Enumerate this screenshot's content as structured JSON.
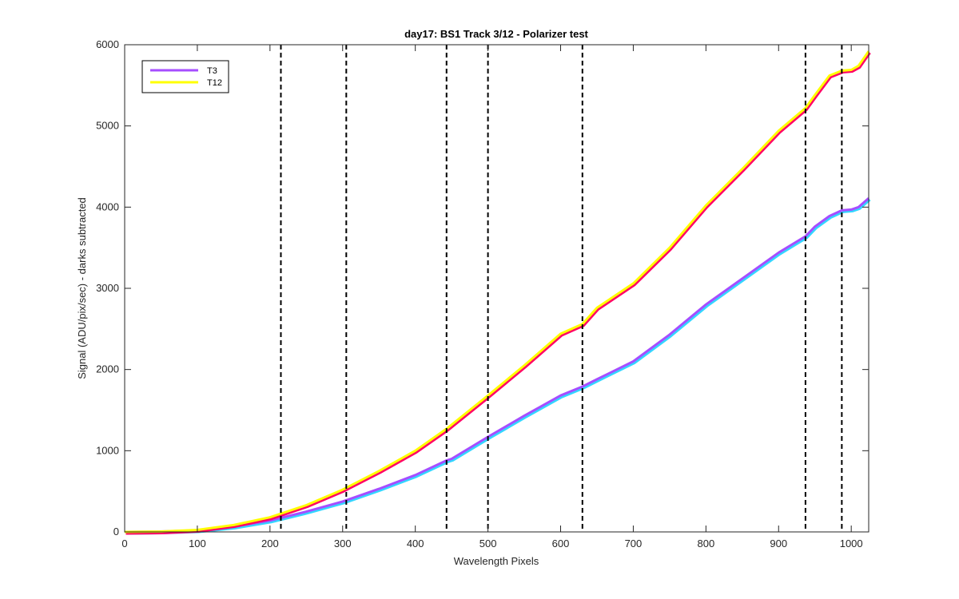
{
  "chart_data": {
    "type": "line",
    "title": "day17: BS1  Track 3/12 - Polarizer test",
    "xlabel": "Wavelength Pixels",
    "ylabel": "Signal (ADU/pix/sec) - darks subtracted",
    "xlim": [
      0,
      1024
    ],
    "ylim": [
      0,
      6000
    ],
    "xticks": [
      0,
      100,
      200,
      300,
      400,
      500,
      600,
      700,
      800,
      900,
      1000
    ],
    "yticks": [
      0,
      1000,
      2000,
      3000,
      4000,
      5000,
      6000
    ],
    "grid": false,
    "legend_position": "top-left",
    "vertical_lines": [
      215,
      305,
      443,
      500,
      630,
      937,
      987
    ],
    "vertical_line_color": "#000000",
    "series": [
      {
        "name": "T3",
        "color": "#a64dff",
        "secondary_color": "#33d6ff",
        "x": [
          0,
          50,
          100,
          150,
          200,
          250,
          300,
          350,
          400,
          443,
          450,
          500,
          550,
          600,
          630,
          650,
          700,
          750,
          800,
          850,
          900,
          937,
          950,
          970,
          987,
          1000,
          1010,
          1024
        ],
        "values": [
          0,
          5,
          20,
          65,
          140,
          250,
          375,
          530,
          700,
          880,
          900,
          1170,
          1430,
          1680,
          1790,
          1880,
          2100,
          2430,
          2800,
          3120,
          3440,
          3640,
          3760,
          3890,
          3960,
          3970,
          4000,
          4110
        ]
      },
      {
        "name": "T12",
        "color": "#ffff00",
        "secondary_color": "#ff0066",
        "x": [
          0,
          50,
          100,
          150,
          200,
          250,
          300,
          350,
          400,
          443,
          450,
          500,
          550,
          600,
          630,
          650,
          700,
          750,
          800,
          850,
          900,
          937,
          950,
          970,
          987,
          1000,
          1010,
          1024
        ],
        "values": [
          0,
          5,
          25,
          85,
          180,
          330,
          520,
          750,
          1000,
          1270,
          1320,
          1680,
          2050,
          2440,
          2560,
          2760,
          3060,
          3500,
          4020,
          4470,
          4940,
          5220,
          5380,
          5620,
          5680,
          5690,
          5740,
          5920
        ]
      }
    ]
  }
}
